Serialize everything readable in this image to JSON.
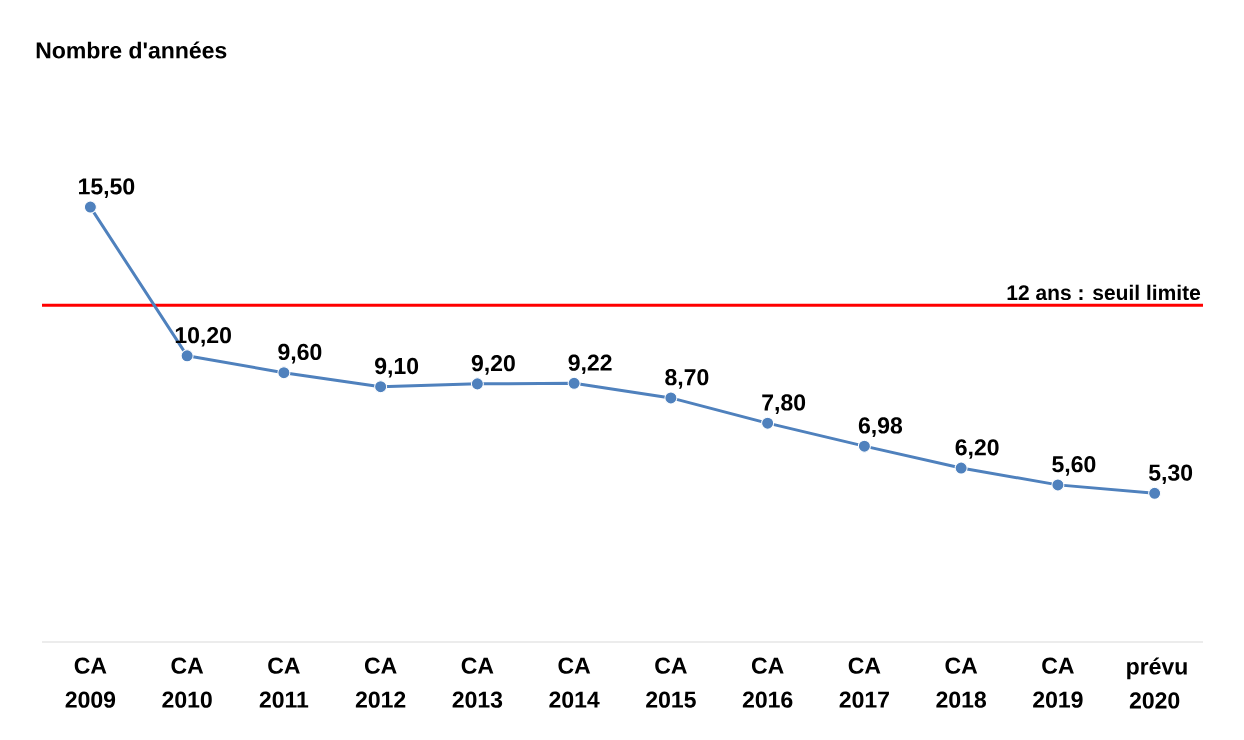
{
  "chart_data": {
    "type": "line",
    "annotations": [
      "Nombre d'années"
    ],
    "categories": [
      "CA 2009",
      "CA 2010",
      "CA 2011",
      "CA 2012",
      "CA 2013",
      "CA 2014",
      "CA 2015",
      "CA 2016",
      "CA 2017",
      "CA 2018",
      "CA 2019",
      "prévu 2020"
    ],
    "series": [
      {
        "color": "#4f81bd",
        "values": [
          15.5,
          10.2,
          9.6,
          9.1,
          9.2,
          9.22,
          8.7,
          7.8,
          6.98,
          6.2,
          5.6,
          5.3
        ],
        "value_labels": [
          "15,50",
          "10,20",
          "9,60",
          "9,10",
          "9,20",
          "9,22",
          "8,70",
          "7,80",
          "6,98",
          "6,20",
          "5,60",
          "5,30"
        ]
      }
    ],
    "tick_labels": "x",
    "marker": "circle",
    "line_style": "solid",
    "grid": false,
    "ref_lines": [
      {
        "axis": "y",
        "value": 12,
        "label": "12 ans : seuil limite",
        "color": "#ff0000"
      }
    ]
  }
}
